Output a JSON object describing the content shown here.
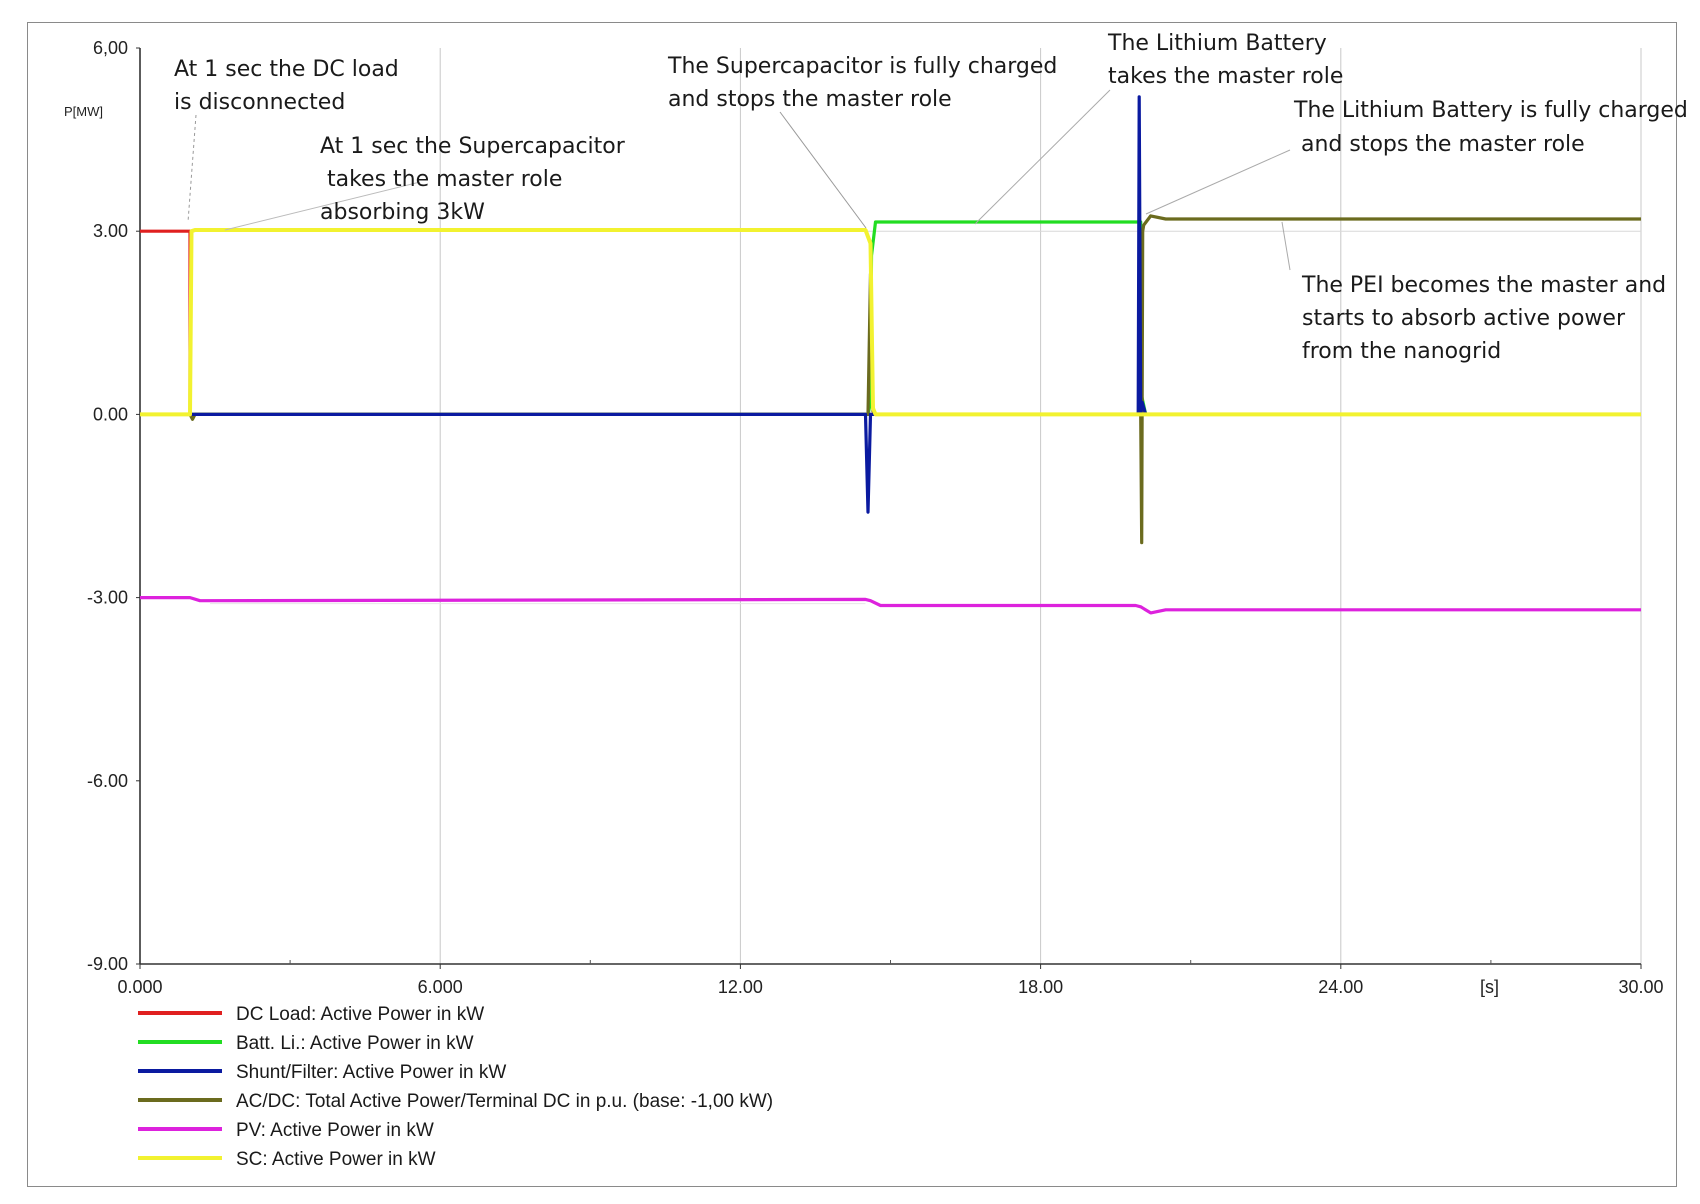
{
  "chart_data": {
    "type": "line",
    "title": "",
    "xlabel": "[s]",
    "ylabel": "P[MW]",
    "xlim": [
      0,
      30
    ],
    "ylim": [
      -9,
      6
    ],
    "x_ticks": [
      "0.000",
      "6.000",
      "12.00",
      "18.00",
      "24.00",
      "30.00"
    ],
    "y_ticks": [
      "6,00",
      "3.00",
      "0.00",
      "-3.00",
      "-6.00",
      "-9.00"
    ],
    "grid": "vertical",
    "legend_position": "bottom-left",
    "series": [
      {
        "name": "DC Load: Active Power in kW",
        "color": "#e02020",
        "x": [
          0,
          0.99,
          1.0,
          1.0,
          30
        ],
        "y": [
          3,
          3,
          3,
          0,
          0
        ]
      },
      {
        "name": "Batt. Li.: Active Power in kW",
        "color": "#22dd22",
        "x": [
          0,
          14.55,
          14.6,
          14.62,
          14.7,
          20,
          20.02,
          20.1,
          30
        ],
        "y": [
          0,
          0,
          0.2,
          2.6,
          3.15,
          3.15,
          0.3,
          0,
          0
        ]
      },
      {
        "name": "Shunt/Filter: Active Power in kW",
        "color": "#0a1aa0",
        "x": [
          0,
          14.5,
          14.55,
          14.6,
          14.65,
          19.95,
          19.97,
          20.0,
          20.03,
          20.1,
          30
        ],
        "y": [
          0,
          0,
          -1.6,
          0,
          0,
          0,
          5.2,
          0,
          0.2,
          0,
          0
        ]
      },
      {
        "name": "AC/DC: Total Active Power/Terminal DC in p.u. (base: -1,00 kW)",
        "color": "#6b6b1e",
        "x": [
          0,
          1.0,
          1.05,
          1.1,
          14.55,
          14.6,
          14.65,
          14.7,
          20,
          20.02,
          20.04,
          20.06,
          20.2,
          20.5,
          21,
          30
        ],
        "y": [
          0,
          0,
          -0.08,
          0,
          0,
          2.3,
          0.05,
          0,
          0,
          -2.1,
          3.0,
          3.1,
          3.25,
          3.2,
          3.2,
          3.2
        ]
      },
      {
        "name": "PV: Active Power in kW",
        "color": "#dd22dd",
        "x": [
          0,
          1.0,
          1.2,
          14.5,
          14.6,
          14.8,
          19.9,
          20.0,
          20.2,
          20.5,
          30
        ],
        "y": [
          -3.0,
          -3.0,
          -3.05,
          -3.03,
          -3.05,
          -3.13,
          -3.13,
          -3.15,
          -3.25,
          -3.2,
          -3.2
        ]
      },
      {
        "name": "SC: Active Power in kW",
        "color": "#f2f230",
        "x": [
          0,
          1.0,
          1.03,
          1.1,
          14.5,
          14.6,
          14.65,
          14.7,
          30
        ],
        "y": [
          0,
          0,
          3.0,
          3.02,
          3.02,
          2.8,
          0.1,
          0,
          0
        ]
      }
    ],
    "annotations": [
      {
        "lines": [
          "At 1 sec the DC load",
          "is disconnected"
        ]
      },
      {
        "lines": [
          "At 1 sec the Supercapacitor",
          " takes the  master role",
          "absorbing 3kW"
        ]
      },
      {
        "lines": [
          "The Supercapacitor is fully charged",
          "and stops the master role"
        ]
      },
      {
        "lines": [
          "The Lithium Battery",
          "takes the master role"
        ]
      },
      {
        "lines": [
          "The Lithium Battery is fully charged",
          " and stops the master role"
        ]
      },
      {
        "lines": [
          "The PEI becomes the master and",
          "starts  to  absorb  active  power",
          "from the nanogrid"
        ]
      }
    ]
  }
}
